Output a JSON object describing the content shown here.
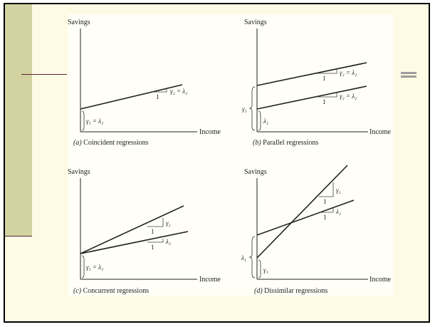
{
  "panels": [
    {
      "id": "a",
      "ylabel": "Savings",
      "xlabel": "Income",
      "caption_letter": "(a)",
      "caption": " Coincident regressions",
      "slope_one": "1",
      "slope_label": "γ₂ = λ₂",
      "intercept_label": "γ₁ = λ₁"
    },
    {
      "id": "b",
      "ylabel": "Savings",
      "xlabel": "Income",
      "caption_letter": "(b)",
      "caption": " Parallel regressions",
      "slope_one_top": "1",
      "slope_label_top": "γ₂ = λ₂",
      "slope_one_bottom": "1",
      "slope_label_bottom": "γ₂ = λ₂",
      "intercept_outer": "γ₁",
      "intercept_inner": "λ₁"
    },
    {
      "id": "c",
      "ylabel": "Savings",
      "xlabel": "Income",
      "caption_letter": "(c)",
      "caption": " Concurrent regressions",
      "slope_one_top": "1",
      "slope_label_top": "γ₂",
      "slope_one_bottom": "1",
      "slope_label_bottom": "λ₂",
      "intercept_label": "γ₁ = λ₁"
    },
    {
      "id": "d",
      "ylabel": "Savings",
      "xlabel": "Income",
      "caption_letter": "(d)",
      "caption": " Dissimilar regressions",
      "slope_one_top": "1",
      "slope_label_top": "γ₂",
      "slope_one_bottom": "1",
      "slope_label_bottom": "λ₂",
      "intercept_outer": "λ₁",
      "intercept_inner": "γ₁"
    }
  ]
}
